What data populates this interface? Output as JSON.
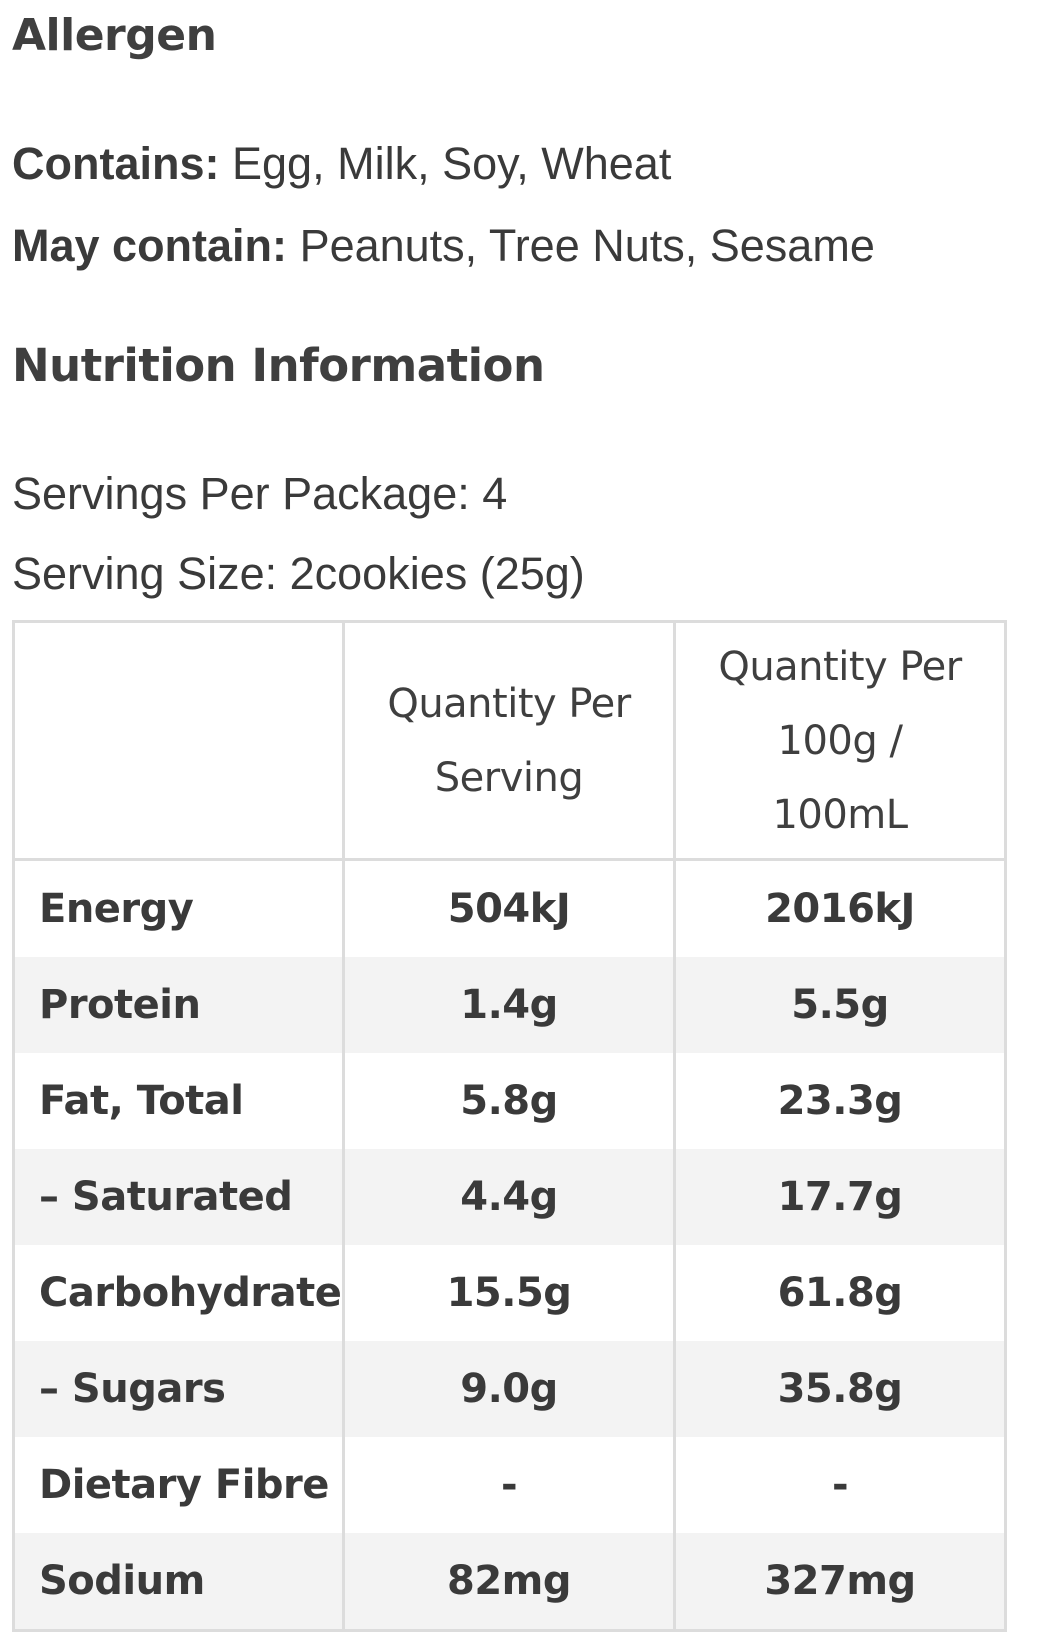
{
  "allergen": {
    "heading": "Allergen",
    "contains_label": "Contains:",
    "contains_value": "Egg, Milk, Soy, Wheat",
    "may_contain_label": "May contain:",
    "may_contain_value": "Peanuts, Tree Nuts, Sesame"
  },
  "nutrition": {
    "heading": "Nutrition Information",
    "servings_per_package": "Servings Per Package: 4",
    "serving_size": "Serving Size: 2cookies (25g)",
    "table": {
      "headers": [
        "",
        "Quantity Per Serving",
        "Quantity Per 100g / 100mL"
      ],
      "rows": [
        {
          "nutrient": "Energy",
          "per_serving": "504kJ",
          "per_100": "2016kJ"
        },
        {
          "nutrient": "Protein",
          "per_serving": "1.4g",
          "per_100": "5.5g"
        },
        {
          "nutrient": "Fat, Total",
          "per_serving": "5.8g",
          "per_100": "23.3g"
        },
        {
          "nutrient": "– Saturated",
          "per_serving": "4.4g",
          "per_100": "17.7g"
        },
        {
          "nutrient": "Carbohydrate",
          "per_serving": "15.5g",
          "per_100": "61.8g"
        },
        {
          "nutrient": "– Sugars",
          "per_serving": "9.0g",
          "per_100": "35.8g"
        },
        {
          "nutrient": "Dietary Fibre",
          "per_serving": "-",
          "per_100": "-"
        },
        {
          "nutrient": "Sodium",
          "per_serving": "82mg",
          "per_100": "327mg"
        }
      ]
    }
  },
  "colors": {
    "text": "#3a3a3a",
    "table_border": "#dcdcdc",
    "row_stripe": "#f3f3f3"
  }
}
